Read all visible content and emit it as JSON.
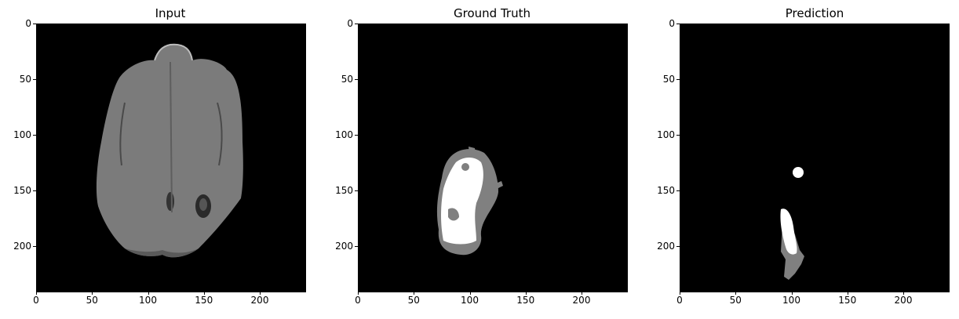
{
  "panels": [
    {
      "title": "Input"
    },
    {
      "title": "Ground Truth"
    },
    {
      "title": "Prediction"
    }
  ],
  "axes": {
    "xlim": [
      0,
      240
    ],
    "ylim": [
      0,
      240
    ],
    "x_ticks": [
      "0",
      "50",
      "100",
      "150",
      "200"
    ],
    "y_ticks": [
      "0",
      "50",
      "100",
      "150",
      "200"
    ]
  }
}
